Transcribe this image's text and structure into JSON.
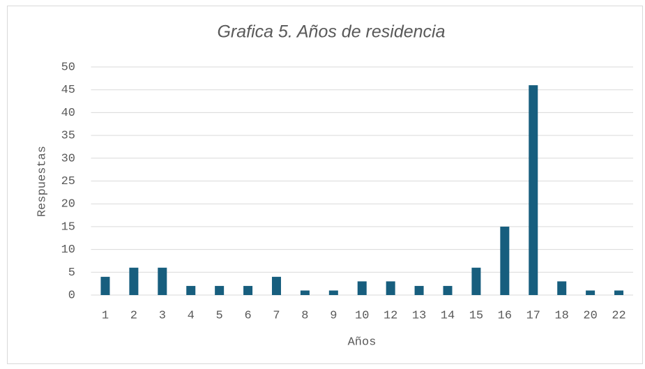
{
  "chart_data": {
    "type": "bar",
    "title": "Grafica 5. Años de residencia",
    "x_label": "Años",
    "y_label": "Respuestas",
    "categories": [
      "1",
      "2",
      "3",
      "4",
      "5",
      "6",
      "7",
      "8",
      "9",
      "10",
      "12",
      "13",
      "14",
      "15",
      "16",
      "17",
      "18",
      "20",
      "22"
    ],
    "values": [
      4,
      6,
      6,
      2,
      2,
      2,
      4,
      1,
      1,
      3,
      3,
      2,
      2,
      6,
      15,
      46,
      3,
      1,
      1
    ],
    "color": "#175e7e",
    "ylim": [
      0,
      50
    ],
    "yticks": [
      0,
      5,
      10,
      15,
      20,
      25,
      30,
      35,
      40,
      45,
      50
    ],
    "grid": true
  }
}
